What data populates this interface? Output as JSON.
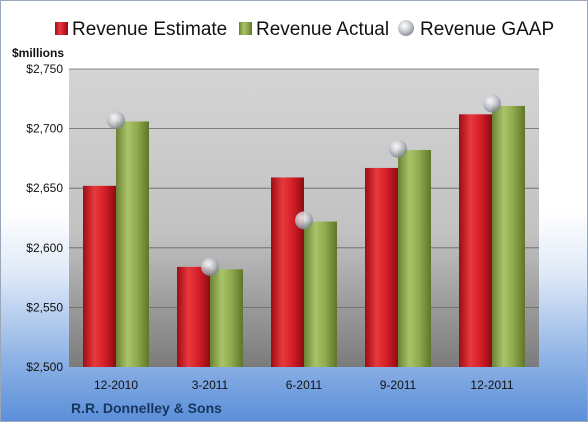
{
  "chart_data": {
    "type": "bar",
    "categories": [
      "12-2010",
      "3-2011",
      "6-2011",
      "9-2011",
      "12-2011"
    ],
    "series": [
      {
        "name": "Revenue Estimate",
        "kind": "bar",
        "color": "#d41f27",
        "values": [
          2652,
          2584,
          2659,
          2667,
          2712
        ]
      },
      {
        "name": "Revenue Actual",
        "kind": "bar",
        "color": "#8faa4c",
        "values": [
          2706,
          2582,
          2622,
          2682,
          2719
        ]
      },
      {
        "name": "Revenue GAAP",
        "kind": "marker",
        "color": "#b8bcc4",
        "values": [
          2707,
          2584,
          2623,
          2683,
          2721
        ]
      }
    ],
    "ylabel": "$millions",
    "ylim": [
      2500,
      2750
    ],
    "yticks": [
      2500,
      2550,
      2600,
      2650,
      2700,
      2750
    ],
    "ytick_labels": [
      "$2,500",
      "$2,550",
      "$2,600",
      "$2,650",
      "$2,700",
      "$2,750"
    ],
    "grid": true,
    "legend": "top",
    "footer": "R.R. Donnelley & Sons"
  }
}
